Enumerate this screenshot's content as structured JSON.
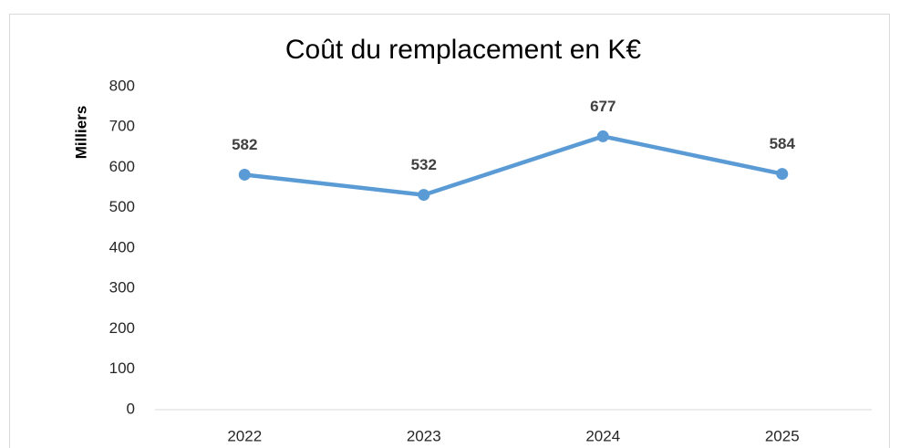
{
  "chart_data": {
    "type": "line",
    "title": "Coût du remplacement en K€",
    "ylabel": "Milliers",
    "categories": [
      "2022",
      "2023",
      "2024",
      "2025"
    ],
    "values": [
      582,
      532,
      677,
      584
    ],
    "color": "#5b9bd5",
    "ylim": [
      0,
      800
    ],
    "yticks": [
      0,
      100,
      200,
      300,
      400,
      500,
      600,
      700,
      800
    ],
    "grid": false
  }
}
